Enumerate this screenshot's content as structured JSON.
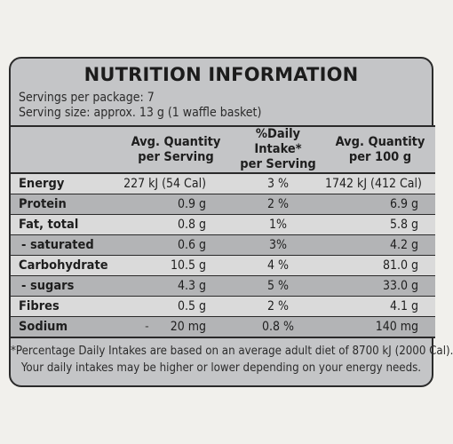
{
  "title": "NUTRITION INFORMATION",
  "servings_per_package": "Servings per package: 7",
  "serving_size": "Serving size: approx. 13 g (1 waffle basket)",
  "headers": {
    "avg_per_serving_l1": "Avg. Quantity",
    "avg_per_serving_l2": "per Serving",
    "daily_intake_l1": "%Daily Intake*",
    "daily_intake_l2": "per Serving",
    "avg_per_100g_l1": "Avg. Quantity",
    "avg_per_100g_l2": "per 100 g"
  },
  "rows": [
    {
      "name": "Energy",
      "per_serving": "227 kJ (54 Cal)",
      "daily_intake": "3 %",
      "per_100g": "1742 kJ (412 Cal)"
    },
    {
      "name": "Protein",
      "per_serving": "0.9 g",
      "daily_intake": "2 %",
      "per_100g": "6.9 g"
    },
    {
      "name": "Fat, total",
      "per_serving": "0.8 g",
      "daily_intake": "1%",
      "per_100g": "5.8 g"
    },
    {
      "name": "- saturated",
      "per_serving": "0.6 g",
      "daily_intake": "3%",
      "per_100g": "4.2 g"
    },
    {
      "name": "Carbohydrate",
      "per_serving": "10.5 g",
      "daily_intake": "4 %",
      "per_100g": "81.0 g"
    },
    {
      "name": "- sugars",
      "per_serving": "4.3 g",
      "daily_intake": "5 %",
      "per_100g": "33.0 g"
    },
    {
      "name": "Fibres",
      "per_serving": "0.5 g",
      "daily_intake": "2 %",
      "per_100g": "4.1 g"
    },
    {
      "name": "Sodium",
      "sodium_dash": "-",
      "per_serving": "20 mg",
      "daily_intake": "0.8 %",
      "per_100g": "140 mg"
    }
  ],
  "footnote_line1": "*Percentage Daily Intakes are based on an average adult diet of 8700 kJ (2000 Cal).",
  "footnote_line2": "Your daily intakes may be higher or lower depending on your energy needs."
}
